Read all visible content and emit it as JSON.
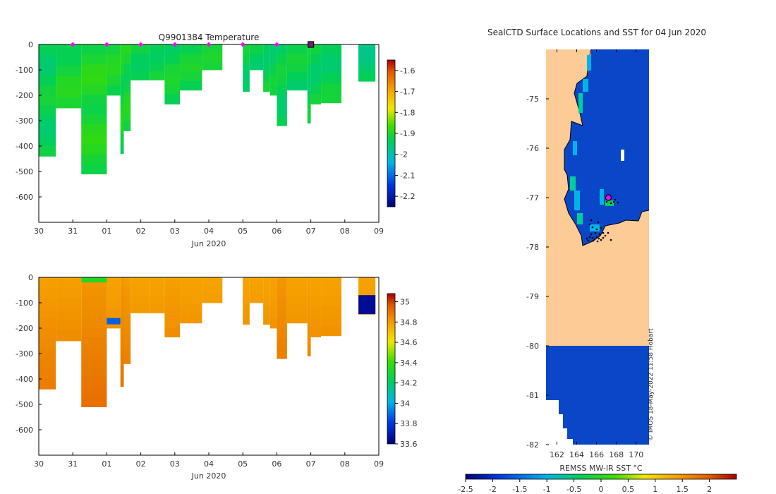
{
  "chart_data": [
    {
      "type": "heatmap",
      "id": "temperature_section",
      "title": "Q9901384  Temperature",
      "xlabel": "Jun 2020",
      "ylabel": "",
      "x_ticks": [
        "30",
        "31",
        "01",
        "02",
        "03",
        "04",
        "05",
        "06",
        "07",
        "08",
        "09"
      ],
      "xlim_days": [
        0,
        10
      ],
      "y_ticks": [
        0,
        -100,
        -200,
        -300,
        -400,
        -500,
        -600
      ],
      "ylim": [
        -700,
        0
      ],
      "profile_markers_days": [
        1,
        2,
        3,
        4,
        5,
        6,
        7
      ],
      "current_profile_day": 8,
      "colorbar": {
        "ticks": [
          -1.6,
          -1.7,
          -1.8,
          -1.9,
          -2,
          -2.1,
          -2.2
        ],
        "range": [
          -2.25,
          -1.55
        ]
      },
      "profiles": [
        {
          "x0": 0.0,
          "x1": 0.5,
          "depth": 440,
          "v": -1.93
        },
        {
          "x0": 0.5,
          "x1": 1.25,
          "depth": 250,
          "v": -1.91
        },
        {
          "x0": 1.25,
          "x1": 2.0,
          "depth": 510,
          "v": -1.9
        },
        {
          "x0": 2.0,
          "x1": 2.4,
          "depth": 200,
          "v": -1.91
        },
        {
          "x0": 2.4,
          "x1": 2.5,
          "depth": 430,
          "v": -1.91
        },
        {
          "x0": 2.5,
          "x1": 2.7,
          "depth": 340,
          "v": -1.91
        },
        {
          "x0": 2.7,
          "x1": 3.25,
          "depth": 140,
          "v": -1.92
        },
        {
          "x0": 3.25,
          "x1": 3.7,
          "depth": 140,
          "v": -1.92
        },
        {
          "x0": 3.7,
          "x1": 4.15,
          "depth": 235,
          "v": -1.92
        },
        {
          "x0": 4.15,
          "x1": 4.8,
          "depth": 180,
          "v": -1.92
        },
        {
          "x0": 4.8,
          "x1": 5.4,
          "depth": 100,
          "v": -1.92
        },
        {
          "x0": 6.0,
          "x1": 6.2,
          "depth": 185,
          "v": -1.93
        },
        {
          "x0": 6.2,
          "x1": 6.6,
          "depth": 100,
          "v": -1.93
        },
        {
          "x0": 6.6,
          "x1": 6.8,
          "depth": 185,
          "v": -1.93
        },
        {
          "x0": 6.8,
          "x1": 7.0,
          "depth": 200,
          "v": -1.93
        },
        {
          "x0": 7.0,
          "x1": 7.3,
          "depth": 320,
          "v": -1.93
        },
        {
          "x0": 7.3,
          "x1": 7.9,
          "depth": 180,
          "v": -1.93
        },
        {
          "x0": 7.9,
          "x1": 8.0,
          "depth": 310,
          "v": -1.93
        },
        {
          "x0": 8.0,
          "x1": 8.3,
          "depth": 235,
          "v": -1.93
        },
        {
          "x0": 8.3,
          "x1": 8.9,
          "depth": 230,
          "v": -1.93
        },
        {
          "x0": 9.4,
          "x1": 9.9,
          "depth": 145,
          "v": -1.95
        }
      ]
    },
    {
      "type": "heatmap",
      "id": "salinity_section",
      "title": "",
      "xlabel": "Jun 2020",
      "ylabel": "",
      "x_ticks": [
        "30",
        "31",
        "01",
        "02",
        "03",
        "04",
        "05",
        "06",
        "07",
        "08",
        "09"
      ],
      "xlim_days": [
        0,
        10
      ],
      "y_ticks": [
        0,
        -100,
        -200,
        -300,
        -400,
        -500,
        -600
      ],
      "ylim": [
        -700,
        0
      ],
      "colorbar": {
        "ticks": [
          35,
          34.8,
          34.6,
          34.4,
          34.2,
          34,
          33.8,
          33.6
        ],
        "range": [
          33.6,
          35.08
        ]
      },
      "profiles": [
        {
          "x0": 0.0,
          "x1": 0.5,
          "depth": 440,
          "v": 34.78
        },
        {
          "x0": 0.5,
          "x1": 1.25,
          "depth": 250,
          "v": 34.78
        },
        {
          "x0": 1.25,
          "x1": 2.0,
          "depth": 510,
          "v": 34.8
        },
        {
          "x0": 2.0,
          "x1": 2.4,
          "depth": 200,
          "v": 34.77
        },
        {
          "x0": 2.4,
          "x1": 2.5,
          "depth": 430,
          "v": 34.8
        },
        {
          "x0": 2.5,
          "x1": 2.7,
          "depth": 340,
          "v": 34.79
        },
        {
          "x0": 2.7,
          "x1": 3.25,
          "depth": 140,
          "v": 34.77
        },
        {
          "x0": 3.25,
          "x1": 3.7,
          "depth": 140,
          "v": 34.77
        },
        {
          "x0": 3.7,
          "x1": 4.15,
          "depth": 235,
          "v": 34.78
        },
        {
          "x0": 4.15,
          "x1": 4.8,
          "depth": 180,
          "v": 34.77
        },
        {
          "x0": 4.8,
          "x1": 5.4,
          "depth": 100,
          "v": 34.77
        },
        {
          "x0": 6.0,
          "x1": 6.2,
          "depth": 185,
          "v": 34.77
        },
        {
          "x0": 6.2,
          "x1": 6.6,
          "depth": 100,
          "v": 34.77
        },
        {
          "x0": 6.6,
          "x1": 6.8,
          "depth": 185,
          "v": 34.77
        },
        {
          "x0": 6.8,
          "x1": 7.0,
          "depth": 200,
          "v": 34.77
        },
        {
          "x0": 7.0,
          "x1": 7.3,
          "depth": 320,
          "v": 34.8
        },
        {
          "x0": 7.3,
          "x1": 7.9,
          "depth": 180,
          "v": 34.77
        },
        {
          "x0": 7.9,
          "x1": 8.0,
          "depth": 310,
          "v": 34.78
        },
        {
          "x0": 8.0,
          "x1": 8.3,
          "depth": 235,
          "v": 34.77
        },
        {
          "x0": 8.3,
          "x1": 8.9,
          "depth": 230,
          "v": 34.77
        },
        {
          "x0": 9.4,
          "x1": 9.9,
          "depth": 145,
          "v": 34.77
        }
      ],
      "anomaly_days": [
        {
          "x0": 1.25,
          "x1": 2.0,
          "depth_top": 0,
          "depth_bot": 20,
          "v": 34.35
        },
        {
          "x0": 2.0,
          "x1": 2.4,
          "depth_top": 160,
          "depth_bot": 185,
          "v": 33.9
        },
        {
          "x0": 9.4,
          "x1": 9.9,
          "depth_top": 70,
          "depth_bot": 145,
          "v": 33.65
        }
      ]
    },
    {
      "type": "heatmap",
      "id": "sst_map",
      "title": "SealCTD Surface Locations and SST for 04 Jun 2020",
      "xlabel": "",
      "x_ticks": [
        "162",
        "164",
        "166",
        "168",
        "170"
      ],
      "x_tick_values": [
        162,
        164,
        166,
        168,
        170
      ],
      "xlim": [
        160.9,
        171.3
      ],
      "y_ticks": [
        "-75",
        "-76",
        "-77",
        "-78",
        "-79",
        "-80",
        "-81",
        "-82"
      ],
      "y_tick_values": [
        -75,
        -76,
        -77,
        -78,
        -79,
        -80,
        -81,
        -82
      ],
      "ylim": [
        -82,
        -74
      ],
      "ice_edge_lat": -80,
      "current_location": [
        167.2,
        -77.0
      ],
      "colorbar": {
        "label": "REMSS MW-IR SST °C",
        "ticks": [
          "-2.5",
          "-2",
          "-1.5",
          "-1",
          "-0.5",
          "0",
          "0.5",
          "1",
          "1.5",
          "2"
        ],
        "tick_values": [
          -2.5,
          -2,
          -1.5,
          -1,
          -0.5,
          0,
          0.5,
          1,
          1.5,
          2
        ],
        "range": [
          -2.5,
          2.5
        ]
      },
      "credit": "© IMOS 18-May-2022 11:58 Hobart"
    }
  ],
  "colors": {
    "land": "#fdcb96",
    "ocean": "#0a46c8",
    "marker": "#ff00ff",
    "track": "#000000"
  }
}
